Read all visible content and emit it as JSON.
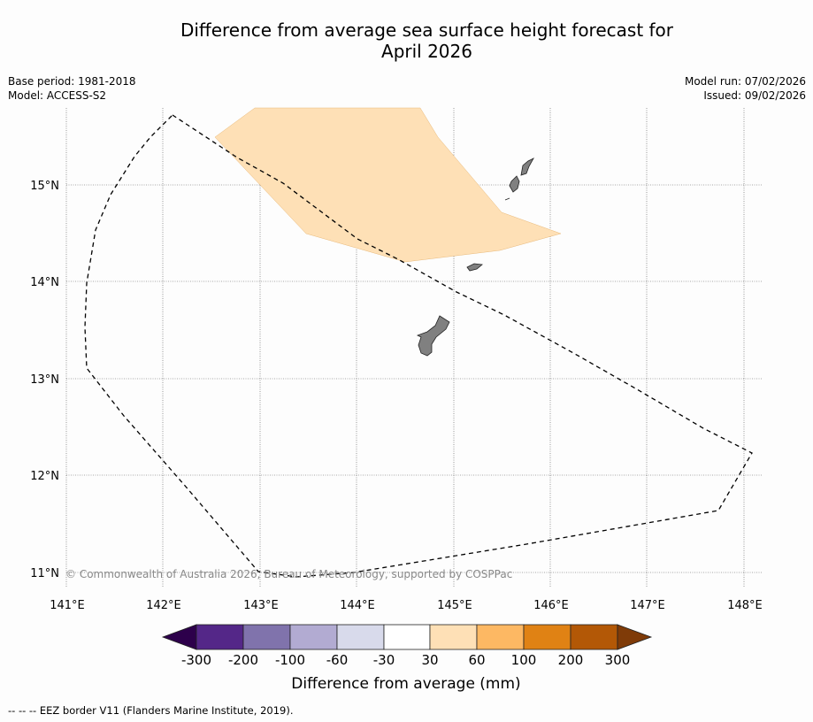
{
  "title": {
    "line1": "Difference from average sea surface height forecast for",
    "line2": "April 2026"
  },
  "meta": {
    "base_period": "Base period: 1981-2018",
    "model": "Model: ACCESS-S2",
    "model_run": "Model run: 07/02/2026",
    "issued": "Issued: 09/02/2026"
  },
  "map": {
    "lon_labels": [
      "141°E",
      "142°E",
      "143°E",
      "144°E",
      "145°E",
      "146°E",
      "147°E",
      "148°E"
    ],
    "lat_labels": [
      "15°N",
      "14°N",
      "13°N",
      "12°N",
      "11°N"
    ],
    "copyright": "© Commonwealth of Australia 2026, Bureau of Meteorology, supported by COSPPac"
  },
  "colorbar": {
    "title": "Difference from average (mm)",
    "ticks": [
      "-300",
      "-200",
      "-100",
      "-60",
      "-30",
      "30",
      "60",
      "100",
      "200",
      "300"
    ],
    "colors": [
      "#2d004b",
      "#542788",
      "#8073ac",
      "#b2abd2",
      "#d8daeb",
      "#ffffff",
      "#fee0b6",
      "#fdb863",
      "#e08214",
      "#b35806",
      "#7f3b08"
    ]
  },
  "footnote": "--  --  -- EEZ border V11 (Flanders Marine Institute, 2019)."
}
